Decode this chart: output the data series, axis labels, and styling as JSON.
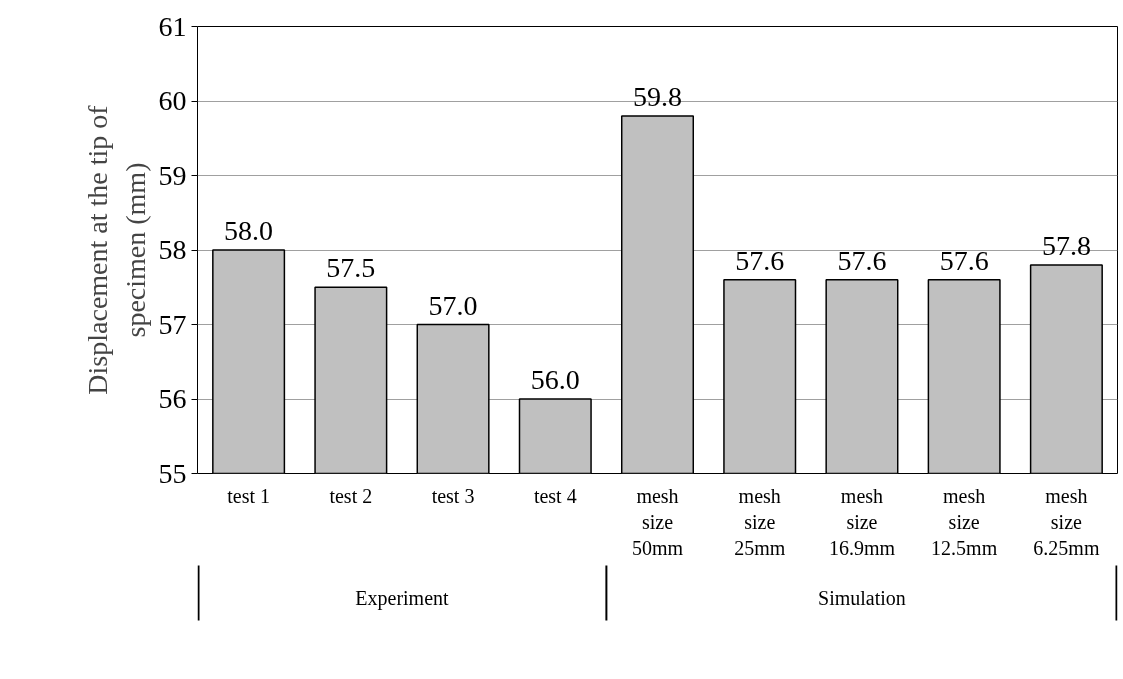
{
  "chart_data": {
    "type": "bar",
    "ylabel": "Displacement at the tip of specimen (mm)",
    "categories": [
      "test 1",
      "test 2",
      "test 3",
      "test 4",
      "mesh size 50mm",
      "mesh size 25mm",
      "mesh size 16.9mm",
      "mesh size 12.5mm",
      "mesh size 6.25mm"
    ],
    "values": [
      58.0,
      57.5,
      57.0,
      56.0,
      59.8,
      57.6,
      57.6,
      57.6,
      57.8
    ],
    "value_labels": [
      "58.0",
      "57.5",
      "57.0",
      "56.0",
      "59.8",
      "57.6",
      "57.6",
      "57.6",
      "57.8"
    ],
    "color": "#c0c0c0",
    "ylim": [
      55,
      61
    ],
    "yticks": [
      55,
      56,
      57,
      58,
      59,
      60,
      61
    ],
    "grid": "y",
    "annotations": [
      "Experiment",
      "Simulation"
    ]
  }
}
